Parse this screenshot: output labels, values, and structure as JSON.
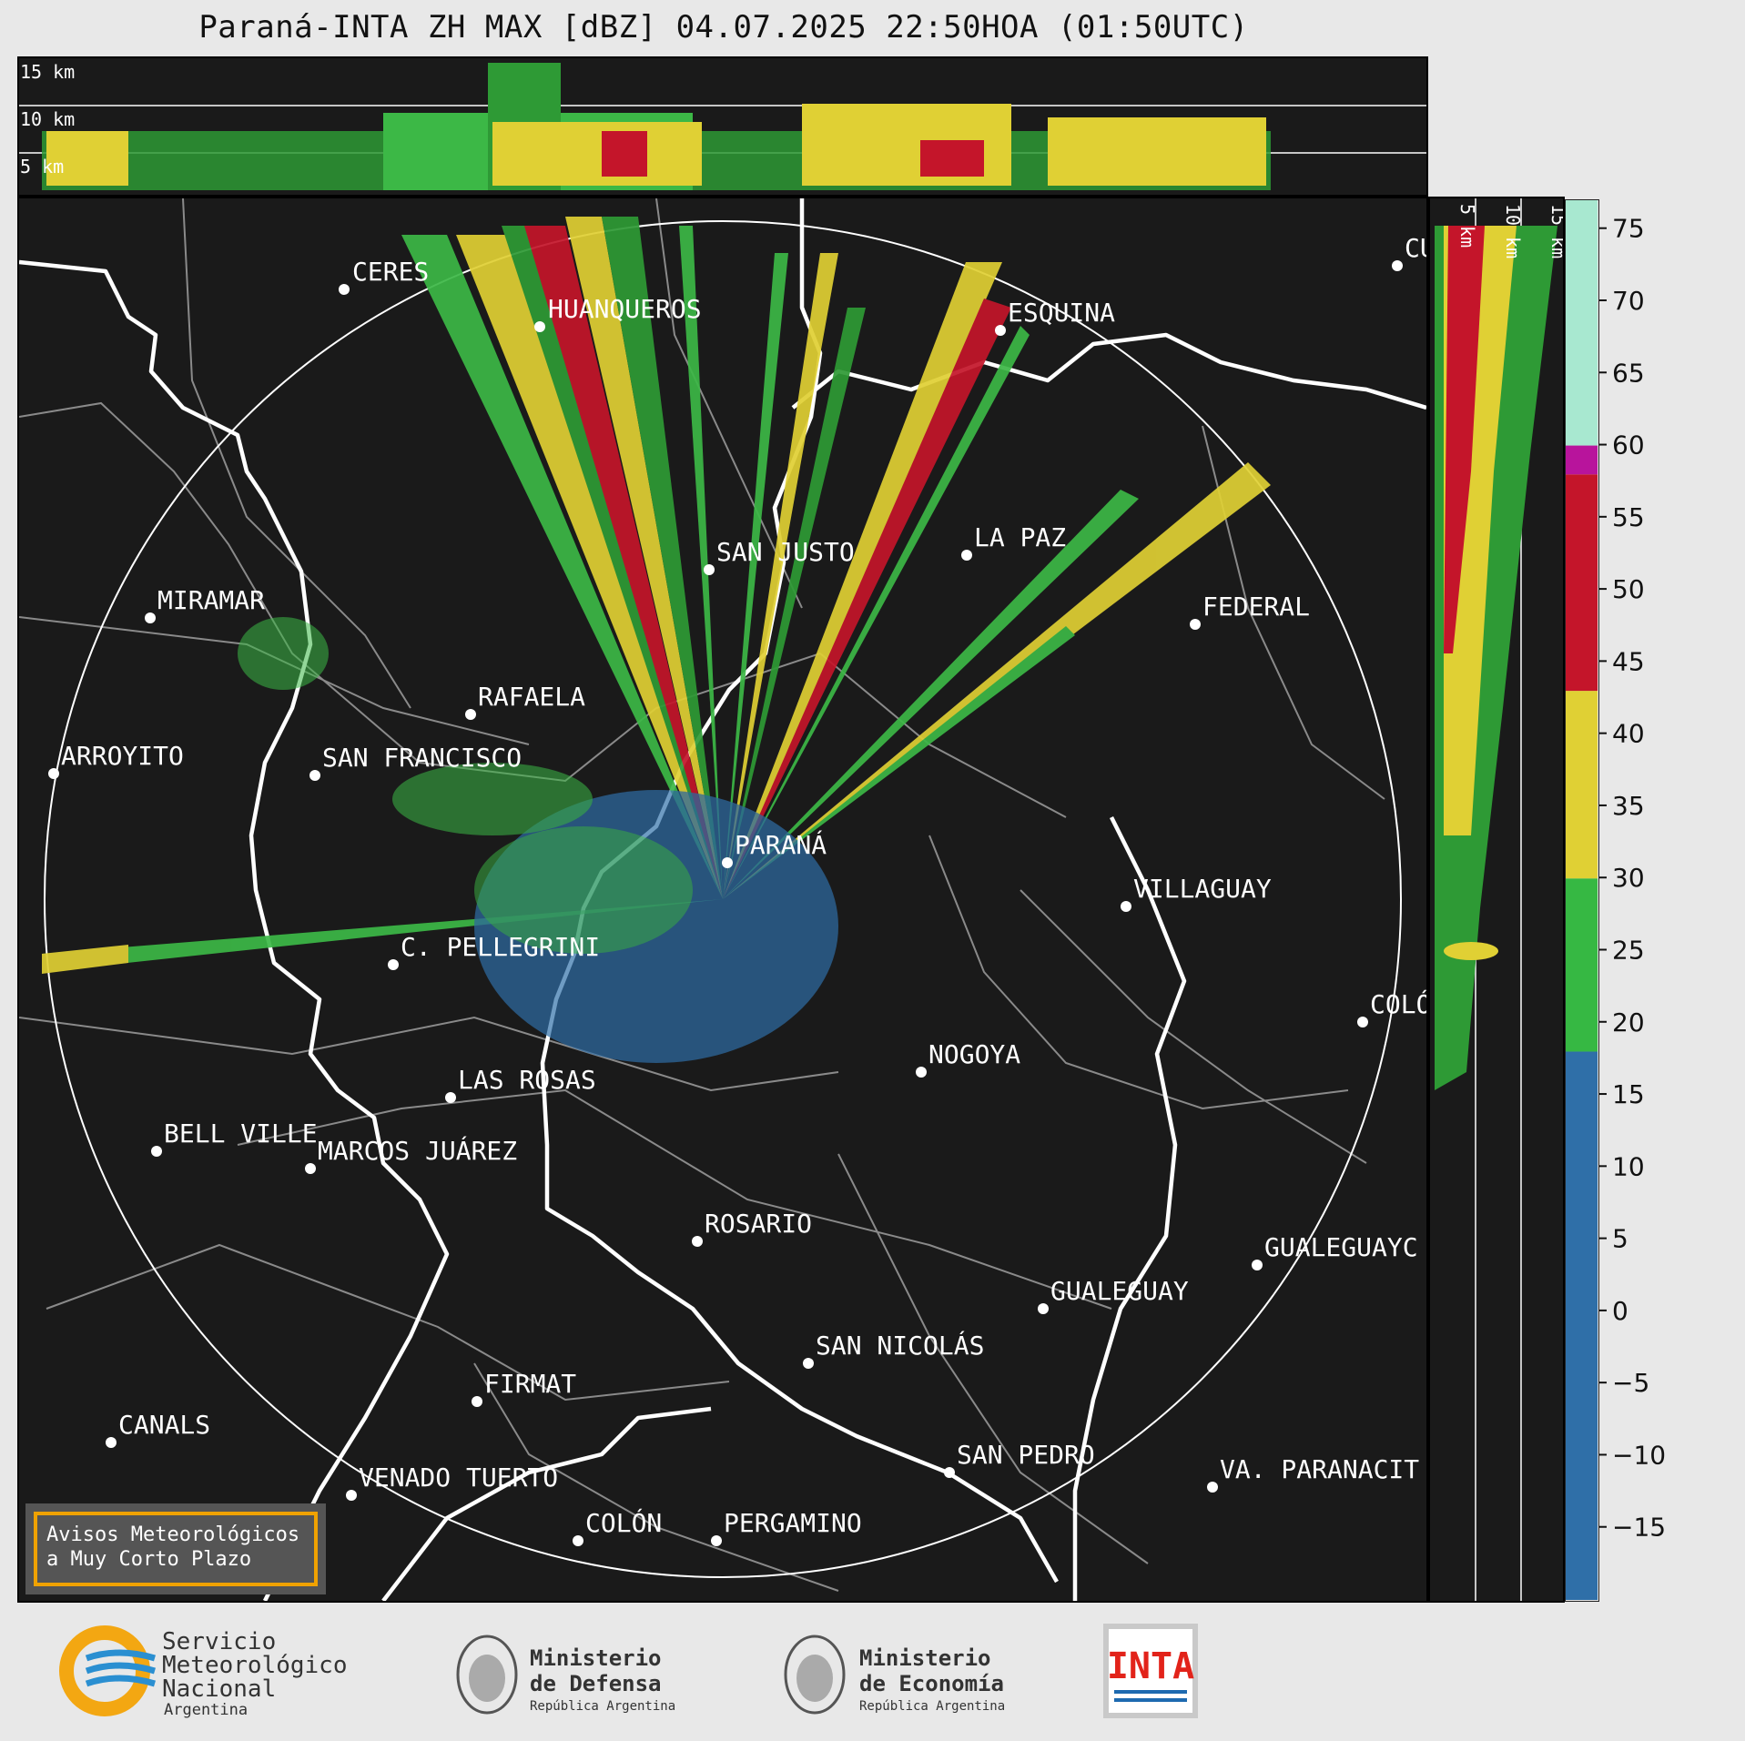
{
  "title": "Paraná-INTA ZH MAX [dBZ] 04.07.2025 22:50HOA (01:50UTC)",
  "height_labels": [
    "15 km",
    "10 km",
    "5 km"
  ],
  "cities": [
    {
      "name": "CERES"
    },
    {
      "name": "HUANQUEROS"
    },
    {
      "name": "ESQUINA"
    },
    {
      "name": "CU"
    },
    {
      "name": "SAN JUSTO"
    },
    {
      "name": "LA PAZ"
    },
    {
      "name": "MIRAMAR"
    },
    {
      "name": "FEDERAL"
    },
    {
      "name": "RAFAELA"
    },
    {
      "name": "ARROYITO"
    },
    {
      "name": "SAN FRANCISCO"
    },
    {
      "name": "PARANÁ"
    },
    {
      "name": "VILLAGUAY"
    },
    {
      "name": "C. PELLEGRINI"
    },
    {
      "name": "COLÓ"
    },
    {
      "name": "NOGOYA"
    },
    {
      "name": "LAS ROSAS"
    },
    {
      "name": "BELL VILLE"
    },
    {
      "name": "MARCOS JUÁREZ"
    },
    {
      "name": "ROSARIO"
    },
    {
      "name": "GUALEGUAYC"
    },
    {
      "name": "GUALEGUAY"
    },
    {
      "name": "SAN NICOLÁS"
    },
    {
      "name": "FIRMAT"
    },
    {
      "name": "CANALS"
    },
    {
      "name": "SAN PEDRO"
    },
    {
      "name": "VENADO TUERTO"
    },
    {
      "name": "VA. PARANACIT"
    },
    {
      "name": "COLÓN"
    },
    {
      "name": "PERGAMINO"
    }
  ],
  "colorbar": {
    "ticks": [
      "75",
      "70",
      "65",
      "60",
      "55",
      "50",
      "45",
      "40",
      "35",
      "30",
      "25",
      "20",
      "15",
      "10",
      "5",
      "0",
      "−5",
      "−10",
      "−15"
    ],
    "bands": [
      {
        "from": -20,
        "to": 18,
        "color": "#2f6fa8"
      },
      {
        "from": 18,
        "to": 30,
        "color": "#36b843"
      },
      {
        "from": 30,
        "to": 43,
        "color": "#e0d034"
      },
      {
        "from": 43,
        "to": 58,
        "color": "#c4152a"
      },
      {
        "from": 58,
        "to": 60,
        "color": "#b8149c"
      },
      {
        "from": 60,
        "to": 77,
        "color": "#a8e8d0"
      }
    ]
  },
  "legend": {
    "line1": "Avisos Meteorológicos",
    "line2": "a Muy Corto Plazo"
  },
  "logos": {
    "smn": {
      "line1": "Servicio",
      "line2": "Meteorológico",
      "line3": "Nacional",
      "line4": "Argentina"
    },
    "defensa": {
      "line1": "Ministerio",
      "line2": "de Defensa",
      "line3": "República Argentina"
    },
    "economia": {
      "line1": "Ministerio",
      "line2": "de Economía",
      "line3": "República Argentina"
    },
    "inta": {
      "text": "INTA"
    }
  }
}
